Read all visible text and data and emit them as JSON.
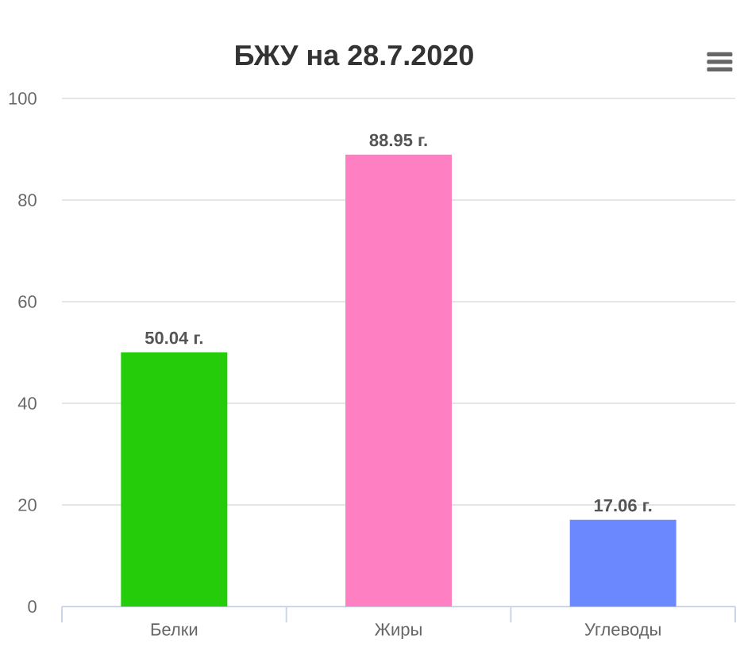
{
  "chart_data": {
    "type": "bar",
    "title": "БЖУ на 28.7.2020",
    "categories": [
      "Белки",
      "Жиры",
      "Углеводы"
    ],
    "values": [
      50.04,
      88.95,
      17.06
    ],
    "colors": [
      "#24cc0a",
      "#ff7fc3",
      "#6b88ff"
    ],
    "value_labels": [
      "50.04 г.",
      "88.95 г.",
      "17.06 г."
    ],
    "ylim": [
      0,
      100
    ],
    "yticks": [
      0,
      20,
      40,
      60,
      80,
      100
    ],
    "grid": "y"
  }
}
